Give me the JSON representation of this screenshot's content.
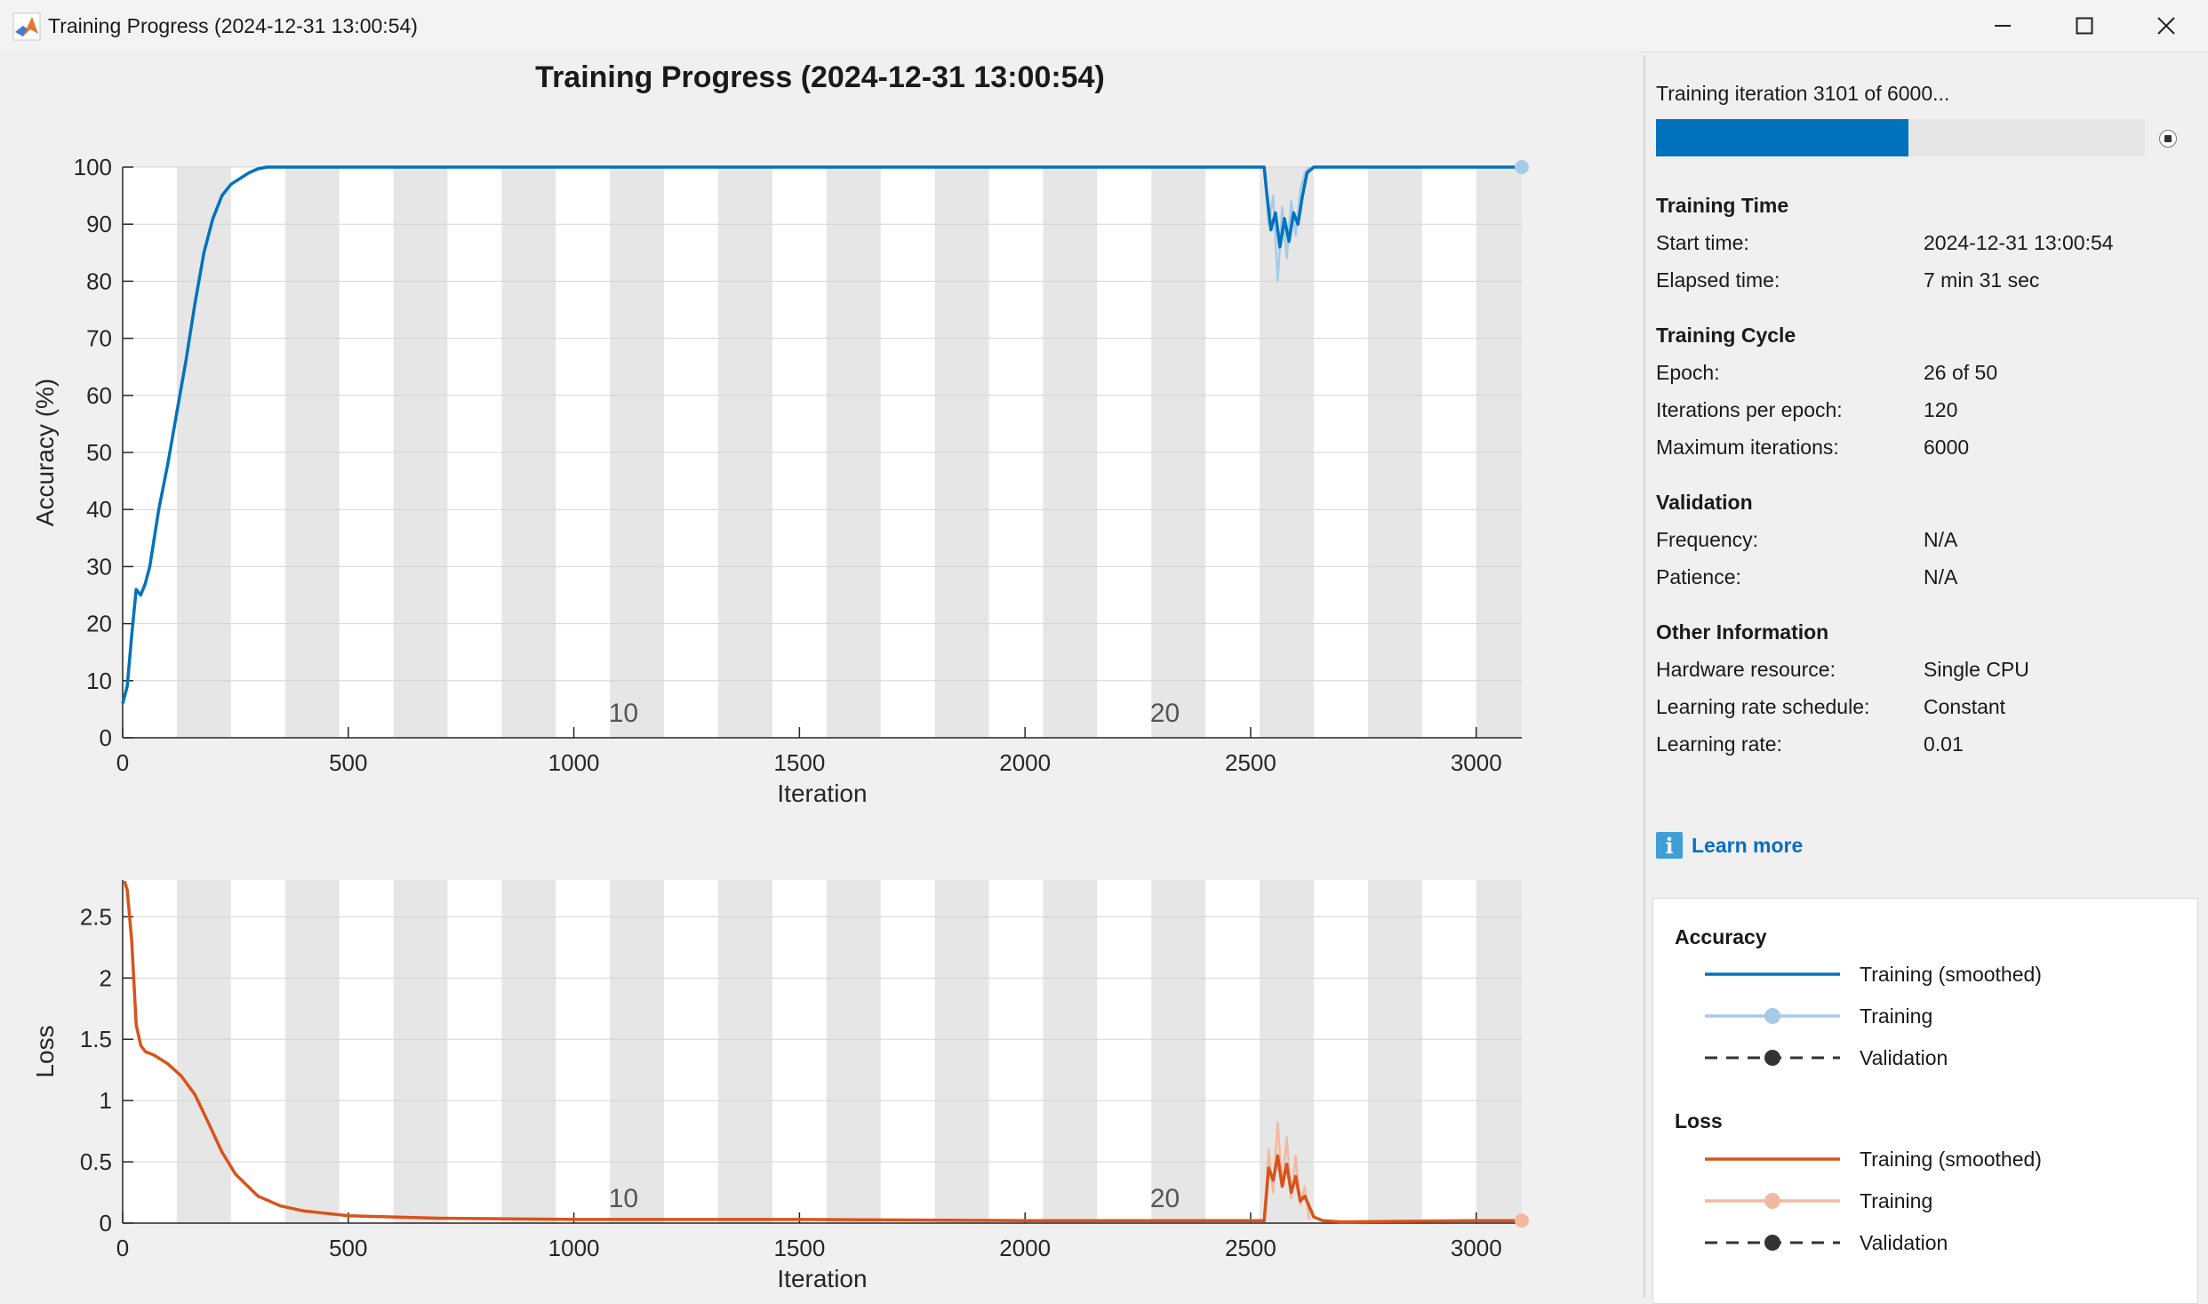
{
  "window": {
    "title": "Training Progress (2024-12-31 13:00:54)",
    "app_icon": "matlab-icon",
    "buttons": [
      "minimize-icon",
      "maximize-icon",
      "close-icon"
    ]
  },
  "figure": {
    "title": "Training Progress (2024-12-31 13:00:54)",
    "accent_color": "#0072bd",
    "loss_color": "#d95319"
  },
  "chart_data": [
    {
      "type": "line",
      "title": "",
      "xlabel": "Iteration",
      "ylabel": "Accuracy (%)",
      "xlim": [
        0,
        3101
      ],
      "ylim": [
        0,
        100
      ],
      "xticks": [
        0,
        500,
        1000,
        1500,
        2000,
        2500,
        3000
      ],
      "yticks": [
        0,
        10,
        20,
        30,
        40,
        50,
        60,
        70,
        80,
        90,
        100
      ],
      "grid": true,
      "epoch_labels": [
        {
          "text": "10",
          "x": 1110
        },
        {
          "text": "20",
          "x": 2310
        }
      ],
      "epoch_iterations": 120,
      "series": [
        {
          "name": "Training (smoothed)",
          "color": "#0072bd",
          "x": [
            0,
            10,
            20,
            30,
            40,
            50,
            60,
            80,
            100,
            120,
            140,
            160,
            180,
            200,
            220,
            240,
            260,
            280,
            300,
            320,
            340,
            360,
            400,
            600,
            1000,
            1500,
            2000,
            2400,
            2530,
            2535,
            2545,
            2555,
            2565,
            2575,
            2585,
            2595,
            2605,
            2615,
            2625,
            2640,
            2660,
            2700,
            3000,
            3101
          ],
          "y": [
            6,
            9,
            18,
            26,
            25,
            27,
            30,
            40,
            48,
            57,
            66,
            76,
            85,
            91,
            95,
            97,
            98,
            99,
            99.7,
            100,
            100,
            100,
            100,
            100,
            100,
            100,
            100,
            100,
            100,
            96,
            89,
            92,
            86,
            91,
            87,
            92,
            90,
            95,
            99,
            100,
            100,
            100,
            100,
            100
          ]
        },
        {
          "name": "Training",
          "color": "#a6cbe8",
          "x": [
            2530,
            2540,
            2550,
            2560,
            2570,
            2580,
            2590,
            2600,
            2610,
            2620,
            2630
          ],
          "y": [
            100,
            90,
            95,
            80,
            93,
            84,
            94,
            88,
            96,
            99,
            100
          ]
        }
      ]
    },
    {
      "type": "line",
      "title": "",
      "xlabel": "Iteration",
      "ylabel": "Loss",
      "xlim": [
        0,
        3101
      ],
      "ylim": [
        0,
        2.8
      ],
      "xticks": [
        0,
        500,
        1000,
        1500,
        2000,
        2500,
        3000
      ],
      "yticks": [
        0,
        0.5,
        1,
        1.5,
        2,
        2.5
      ],
      "grid": true,
      "epoch_labels": [
        {
          "text": "10",
          "x": 1110
        },
        {
          "text": "20",
          "x": 2310
        }
      ],
      "epoch_iterations": 120,
      "series": [
        {
          "name": "Training (smoothed)",
          "color": "#d95319",
          "x": [
            0,
            5,
            10,
            20,
            30,
            40,
            50,
            70,
            100,
            130,
            160,
            190,
            220,
            250,
            300,
            350,
            400,
            500,
            700,
            1000,
            1500,
            2000,
            2400,
            2530,
            2540,
            2550,
            2560,
            2570,
            2580,
            2590,
            2600,
            2610,
            2620,
            2640,
            2660,
            2700,
            3000,
            3101
          ],
          "y": [
            2.78,
            2.78,
            2.72,
            2.3,
            1.62,
            1.45,
            1.4,
            1.37,
            1.3,
            1.2,
            1.05,
            0.82,
            0.58,
            0.4,
            0.22,
            0.14,
            0.1,
            0.06,
            0.04,
            0.03,
            0.03,
            0.02,
            0.02,
            0.02,
            0.45,
            0.35,
            0.55,
            0.3,
            0.48,
            0.25,
            0.38,
            0.18,
            0.22,
            0.05,
            0.02,
            0.01,
            0.02,
            0.02
          ]
        },
        {
          "name": "Training",
          "color": "#f2b9a1",
          "x": [
            2530,
            2540,
            2550,
            2560,
            2570,
            2580,
            2590,
            2600,
            2610,
            2620,
            2630
          ],
          "y": [
            0.02,
            0.6,
            0.25,
            0.82,
            0.3,
            0.7,
            0.2,
            0.55,
            0.15,
            0.3,
            0.03
          ]
        }
      ]
    }
  ],
  "panel": {
    "iteration_text": "Training iteration 3101 of 6000...",
    "progress_fraction": 0.517,
    "sections": [
      {
        "heading": "Training Time",
        "rows": [
          {
            "label": "Start time:",
            "value": "2024-12-31 13:00:54"
          },
          {
            "label": "Elapsed time:",
            "value": "7 min 31 sec"
          }
        ]
      },
      {
        "heading": "Training Cycle",
        "rows": [
          {
            "label": "Epoch:",
            "value": "26 of 50"
          },
          {
            "label": "Iterations per epoch:",
            "value": "120"
          },
          {
            "label": "Maximum iterations:",
            "value": "6000"
          }
        ]
      },
      {
        "heading": "Validation",
        "rows": [
          {
            "label": "Frequency:",
            "value": "N/A"
          },
          {
            "label": "Patience:",
            "value": "N/A"
          }
        ]
      },
      {
        "heading": "Other Information",
        "rows": [
          {
            "label": "Hardware resource:",
            "value": "Single CPU"
          },
          {
            "label": "Learning rate schedule:",
            "value": "Constant"
          },
          {
            "label": "Learning rate:",
            "value": "0.01"
          }
        ]
      }
    ],
    "learn_more": "Learn more",
    "legend": {
      "accuracy_heading": "Accuracy",
      "loss_heading": "Loss",
      "entries": [
        "Training (smoothed)",
        "Training",
        "Validation"
      ]
    }
  }
}
